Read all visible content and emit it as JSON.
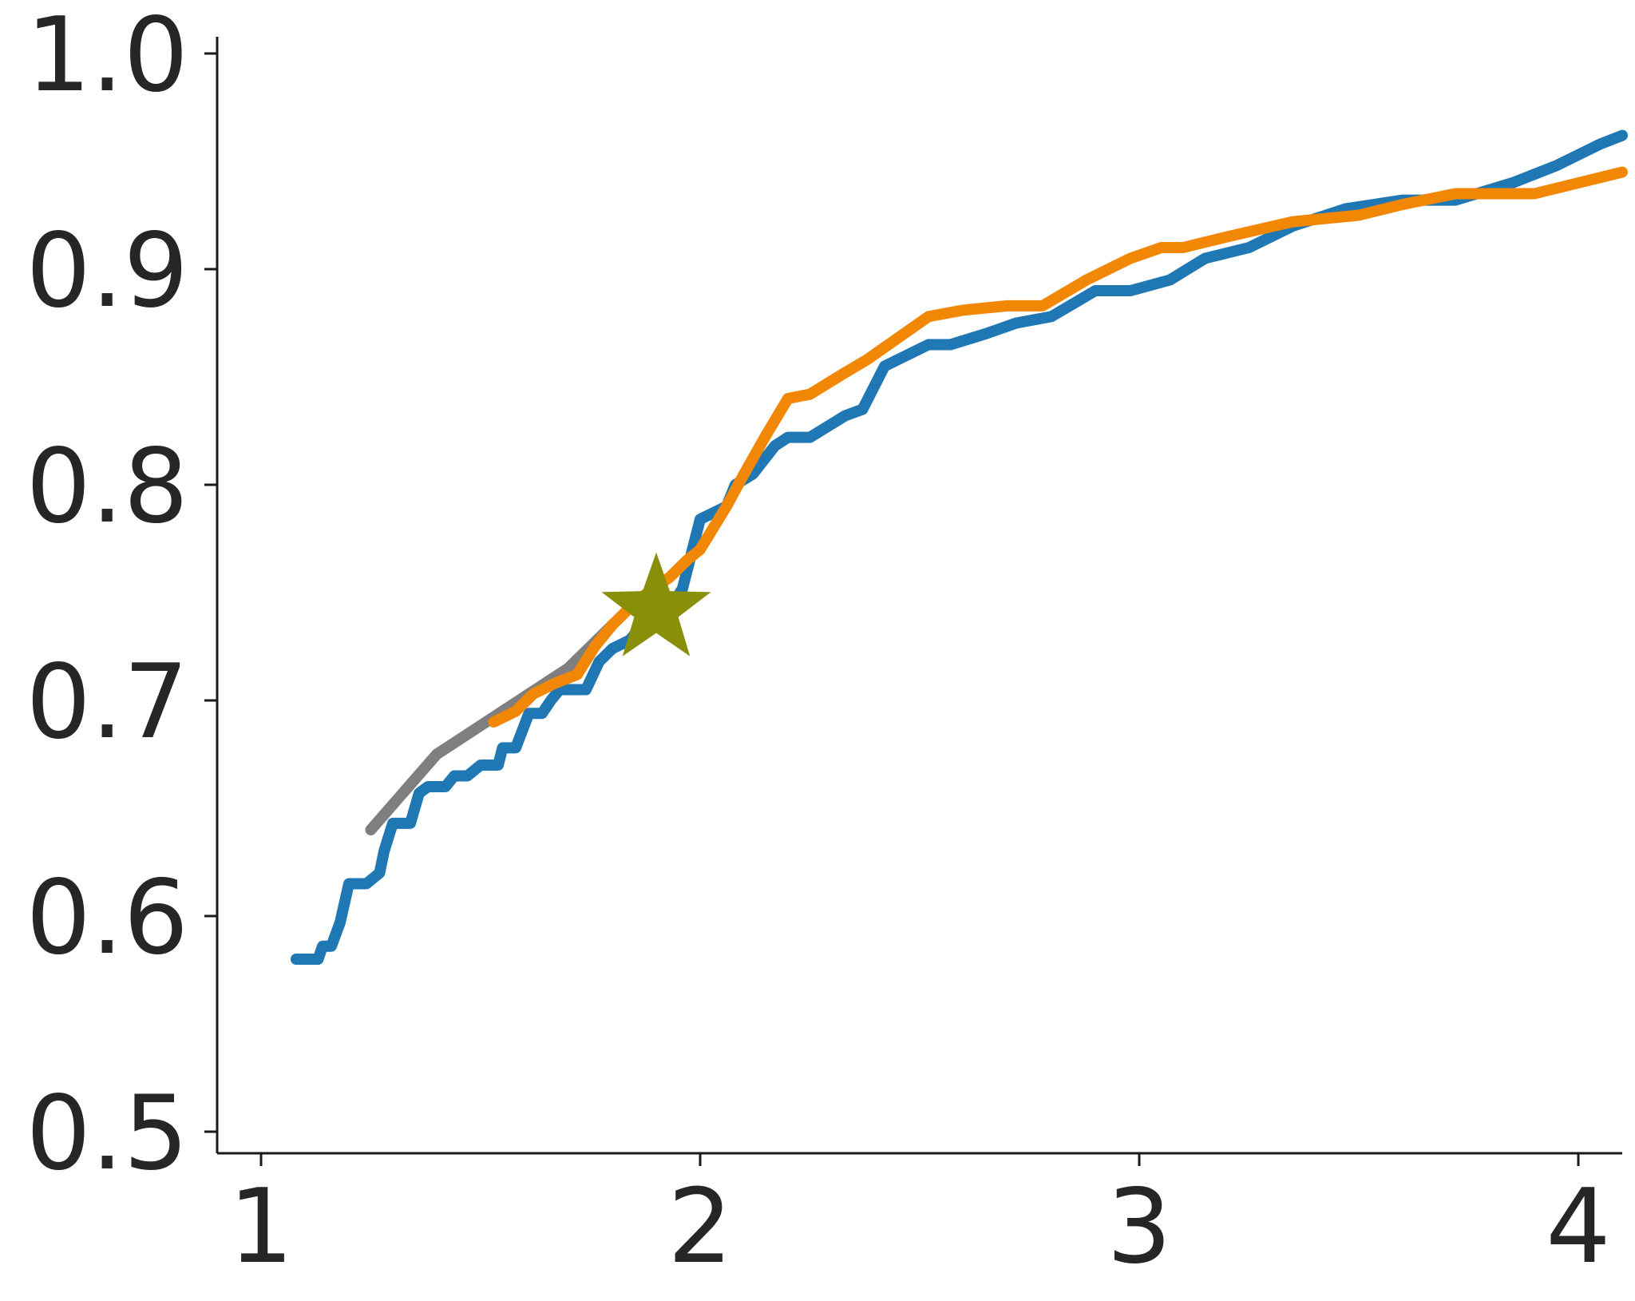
{
  "chart_data": {
    "type": "line",
    "title": "",
    "xlabel": "",
    "ylabel": "",
    "xlim": [
      0.9,
      4.1
    ],
    "ylim": [
      0.49,
      1.01
    ],
    "x_ticks": [
      1,
      2,
      3,
      4
    ],
    "x_tick_labels": [
      "1",
      "2",
      "3",
      "4"
    ],
    "y_ticks": [
      0.5,
      0.6,
      0.7,
      0.8,
      0.9,
      1.0
    ],
    "y_tick_labels": [
      "0.5",
      "0.6",
      "0.7",
      "0.8",
      "0.9",
      "1.0"
    ],
    "grid": false,
    "legend": "none",
    "series": [
      {
        "color": "#7f7f7f",
        "points": [
          [
            1.25,
            0.64
          ],
          [
            1.4,
            0.675
          ],
          [
            1.55,
            0.695
          ],
          [
            1.7,
            0.715
          ],
          [
            1.8,
            0.735
          ]
        ]
      },
      {
        "color": "#1f77b4",
        "points": [
          [
            1.08,
            0.58
          ],
          [
            1.13,
            0.58
          ],
          [
            1.14,
            0.586
          ],
          [
            1.16,
            0.586
          ],
          [
            1.18,
            0.597
          ],
          [
            1.2,
            0.615
          ],
          [
            1.24,
            0.615
          ],
          [
            1.27,
            0.62
          ],
          [
            1.28,
            0.63
          ],
          [
            1.3,
            0.643
          ],
          [
            1.34,
            0.643
          ],
          [
            1.36,
            0.657
          ],
          [
            1.38,
            0.66
          ],
          [
            1.42,
            0.66
          ],
          [
            1.44,
            0.665
          ],
          [
            1.47,
            0.665
          ],
          [
            1.5,
            0.67
          ],
          [
            1.54,
            0.67
          ],
          [
            1.55,
            0.678
          ],
          [
            1.58,
            0.678
          ],
          [
            1.61,
            0.694
          ],
          [
            1.64,
            0.694
          ],
          [
            1.66,
            0.7
          ],
          [
            1.68,
            0.705
          ],
          [
            1.74,
            0.705
          ],
          [
            1.77,
            0.718
          ],
          [
            1.8,
            0.724
          ],
          [
            1.84,
            0.728
          ],
          [
            1.88,
            0.738
          ],
          [
            1.93,
            0.742
          ],
          [
            1.96,
            0.752
          ],
          [
            1.98,
            0.768
          ],
          [
            2.0,
            0.784
          ],
          [
            2.02,
            0.786
          ],
          [
            2.06,
            0.79
          ],
          [
            2.08,
            0.8
          ],
          [
            2.12,
            0.805
          ],
          [
            2.17,
            0.818
          ],
          [
            2.2,
            0.822
          ],
          [
            2.25,
            0.822
          ],
          [
            2.33,
            0.832
          ],
          [
            2.37,
            0.835
          ],
          [
            2.42,
            0.855
          ],
          [
            2.47,
            0.86
          ],
          [
            2.52,
            0.865
          ],
          [
            2.57,
            0.865
          ],
          [
            2.65,
            0.87
          ],
          [
            2.72,
            0.875
          ],
          [
            2.8,
            0.878
          ],
          [
            2.9,
            0.89
          ],
          [
            2.98,
            0.89
          ],
          [
            3.07,
            0.895
          ],
          [
            3.15,
            0.905
          ],
          [
            3.25,
            0.91
          ],
          [
            3.35,
            0.92
          ],
          [
            3.47,
            0.928
          ],
          [
            3.6,
            0.932
          ],
          [
            3.72,
            0.932
          ],
          [
            3.85,
            0.94
          ],
          [
            3.95,
            0.948
          ],
          [
            4.05,
            0.958
          ],
          [
            4.1,
            0.962
          ]
        ]
      },
      {
        "color": "#f28705",
        "points": [
          [
            1.53,
            0.69
          ],
          [
            1.58,
            0.695
          ],
          [
            1.62,
            0.703
          ],
          [
            1.67,
            0.708
          ],
          [
            1.72,
            0.712
          ],
          [
            1.76,
            0.725
          ],
          [
            1.8,
            0.735
          ],
          [
            1.84,
            0.743
          ],
          [
            1.88,
            0.75
          ],
          [
            1.93,
            0.757
          ],
          [
            1.97,
            0.765
          ],
          [
            2.0,
            0.77
          ],
          [
            2.06,
            0.79
          ],
          [
            2.1,
            0.805
          ],
          [
            2.15,
            0.823
          ],
          [
            2.2,
            0.84
          ],
          [
            2.25,
            0.842
          ],
          [
            2.33,
            0.852
          ],
          [
            2.38,
            0.858
          ],
          [
            2.45,
            0.868
          ],
          [
            2.52,
            0.878
          ],
          [
            2.6,
            0.881
          ],
          [
            2.7,
            0.883
          ],
          [
            2.78,
            0.883
          ],
          [
            2.88,
            0.895
          ],
          [
            2.98,
            0.905
          ],
          [
            3.05,
            0.91
          ],
          [
            3.1,
            0.91
          ],
          [
            3.2,
            0.915
          ],
          [
            3.35,
            0.922
          ],
          [
            3.5,
            0.925
          ],
          [
            3.6,
            0.93
          ],
          [
            3.72,
            0.935
          ],
          [
            3.9,
            0.935
          ],
          [
            4.0,
            0.94
          ],
          [
            4.1,
            0.945
          ]
        ]
      }
    ],
    "markers": [
      {
        "shape": "star",
        "color": "#8a8f0a",
        "x": 1.9,
        "y": 0.742
      }
    ]
  }
}
